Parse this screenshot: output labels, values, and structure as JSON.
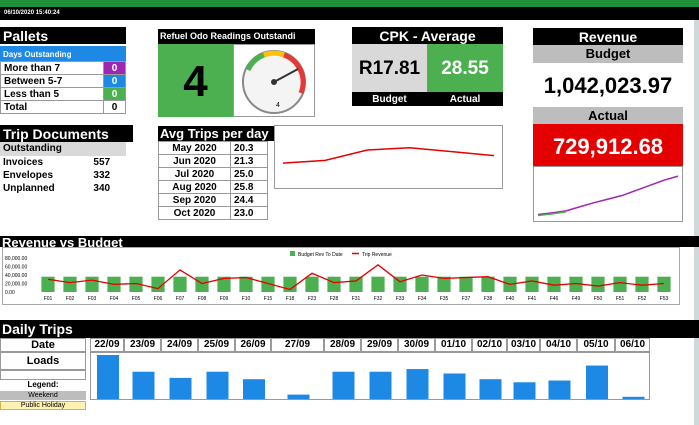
{
  "header": {
    "timestamp": "06/10/2020 15:40:24"
  },
  "colors": {
    "green": "#4caf50",
    "purple": "#9c27b0",
    "blue": "#1e88e5",
    "red": "#e50000",
    "grey": "#d9d9d9"
  },
  "pallets": {
    "title": "Pallets",
    "subheader": "Days Outstanding",
    "rows": [
      {
        "label": "More than 7",
        "value": "0",
        "color": "#9c27b0"
      },
      {
        "label": "Between 5-7",
        "value": "0",
        "color": "#1e88e5"
      },
      {
        "label": "Less than 5",
        "value": "0",
        "color": "#4caf50"
      },
      {
        "label": "Total",
        "value": "0",
        "color": ""
      }
    ]
  },
  "trip_docs": {
    "title": "Trip Documents",
    "subheader": "Outstanding",
    "rows": [
      {
        "label": "Invoices",
        "value": "557"
      },
      {
        "label": "Envelopes",
        "value": "332"
      },
      {
        "label": "Unplanned",
        "value": "340"
      }
    ]
  },
  "refuel": {
    "title": "Refuel Odo Readings Outstandi",
    "value": "4",
    "gauge_value": "4"
  },
  "cpk": {
    "title": "CPK - Average",
    "budget_value": "R17.81",
    "actual_value": "28.55",
    "budget_label": "Budget",
    "actual_label": "Actual"
  },
  "revenue": {
    "title": "Revenue",
    "budget_label": "Budget",
    "budget_value": "1,042,023.97",
    "actual_label": "Actual",
    "actual_value": "729,912.68"
  },
  "avg_trips": {
    "title": "Avg Trips per day",
    "rows": [
      {
        "month": "May 2020",
        "value": "20.3"
      },
      {
        "month": "Jun 2020",
        "value": "21.3"
      },
      {
        "month": "Jul 2020",
        "value": "25.0"
      },
      {
        "month": "Aug 2020",
        "value": "25.8"
      },
      {
        "month": "Sep 2020",
        "value": "24.4"
      },
      {
        "month": "Oct 2020",
        "value": "23.0"
      }
    ]
  },
  "rev_vs_budget": {
    "title": "Revenue vs Budget",
    "legend_budget": "Budget Rev To Date",
    "legend_trip": "Trip Revenue",
    "yticks": [
      "80,000.00",
      "60,000.00",
      "40,000.00",
      "20,000.00",
      "0.00"
    ],
    "categories": [
      "F01",
      "F02",
      "F03",
      "F04",
      "F05",
      "F06",
      "F07",
      "F08",
      "F09",
      "F10",
      "F15",
      "F18",
      "F23",
      "F28",
      "F31",
      "F32",
      "F33",
      "F34",
      "F35",
      "F37",
      "F38",
      "F40",
      "F41",
      "F46",
      "F49",
      "F50",
      "F51",
      "F52",
      "F53"
    ]
  },
  "chart_data": [
    {
      "type": "line",
      "title": "",
      "x": [
        "May 2020",
        "Jun 2020",
        "Jul 2020",
        "Aug 2020",
        "Sep 2020",
        "Oct 2020"
      ],
      "series": [
        {
          "name": "",
          "values": [
            20.3,
            21.3,
            25.0,
            25.8,
            24.4,
            23.0
          ]
        }
      ]
    },
    {
      "type": "bar",
      "title": "Revenue vs Budget",
      "categories": [
        "F01",
        "F02",
        "F03",
        "F04",
        "F05",
        "F06",
        "F07",
        "F08",
        "F09",
        "F10",
        "F15",
        "F18",
        "F23",
        "F28",
        "F31",
        "F32",
        "F33",
        "F34",
        "F35",
        "F37",
        "F38",
        "F40",
        "F41",
        "F46",
        "F49",
        "F50",
        "F51",
        "F52",
        "F53"
      ],
      "series": [
        {
          "name": "Budget Rev To Date",
          "values": [
            36000,
            36000,
            36000,
            36000,
            36000,
            36000,
            36000,
            36000,
            36000,
            36000,
            36000,
            36000,
            36000,
            36000,
            36000,
            36000,
            36000,
            36000,
            36000,
            36000,
            36000,
            36000,
            36000,
            36000,
            36000,
            36000,
            36000,
            36000,
            36000
          ]
        },
        {
          "name": "Trip Revenue",
          "values": [
            30000,
            22000,
            28000,
            18000,
            20000,
            8000,
            52000,
            20000,
            32000,
            34000,
            20000,
            6000,
            44000,
            22000,
            26000,
            64000,
            24000,
            40000,
            32000,
            34000,
            36000,
            18000,
            26000,
            16000,
            20000,
            14000,
            22000,
            16000,
            20000
          ]
        }
      ],
      "ylim": [
        0,
        80000
      ]
    },
    {
      "type": "line",
      "title": "",
      "series": [
        {
          "name": "",
          "values": [
            5,
            8,
            12,
            20,
            28,
            35,
            42,
            52,
            62,
            72,
            80
          ]
        },
        {
          "name": "",
          "values": [
            3,
            6,
            10
          ]
        }
      ]
    },
    {
      "type": "bar",
      "title": "",
      "categories": [
        "22/09",
        "23/09",
        "24/09",
        "25/09",
        "26/09",
        "27/09",
        "28/09",
        "29/09",
        "30/09",
        "01/10",
        "02/10",
        "03/10",
        "04/10",
        "05/10",
        "06/10"
      ],
      "values": [
        100,
        62,
        48,
        62,
        45,
        10,
        62,
        62,
        68,
        58,
        45,
        38,
        42,
        76,
        5
      ],
      "ylim": [
        0,
        100
      ]
    }
  ],
  "daily_trips": {
    "title": "Daily Trips",
    "date_label": "Date",
    "loads_label": "Loads",
    "legend_label": "Legend:",
    "weekend_label": "Weekend",
    "holiday_label": "Public Holiday",
    "dates": [
      "22/09",
      "23/09",
      "24/09",
      "25/09",
      "26/09",
      "27/09",
      "28/09",
      "29/09",
      "30/09",
      "01/10",
      "02/10",
      "03/10",
      "04/10",
      "05/10",
      "06/10"
    ]
  }
}
